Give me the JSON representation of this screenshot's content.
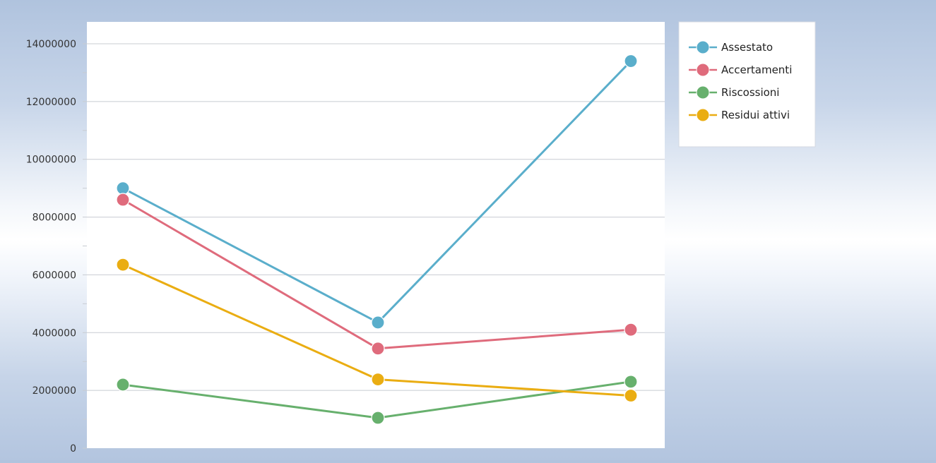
{
  "chart_data": {
    "type": "line",
    "title": "",
    "xlabel": "",
    "ylabel": "",
    "categories": [
      "",
      "",
      ""
    ],
    "ylim": [
      0,
      14000000
    ],
    "yticks": [
      0,
      2000000,
      4000000,
      6000000,
      8000000,
      10000000,
      12000000,
      14000000
    ],
    "ytick_labels": [
      "0",
      "2000000",
      "4000000",
      "6000000",
      "8000000",
      "10000000",
      "12000000",
      "14000000"
    ],
    "grid": true,
    "legend": "top-right",
    "series": [
      {
        "name": "Assestato",
        "color": "#5aaecb",
        "values": [
          9000000,
          4350000,
          13400000
        ]
      },
      {
        "name": "Accertamenti",
        "color": "#df6b7c",
        "values": [
          8600000,
          3450000,
          4100000
        ]
      },
      {
        "name": "Riscossioni",
        "color": "#67b06d",
        "values": [
          2200000,
          1050000,
          2300000
        ]
      },
      {
        "name": "Residui attivi",
        "color": "#eaad12",
        "values": [
          6350000,
          2380000,
          1820000
        ]
      }
    ]
  }
}
